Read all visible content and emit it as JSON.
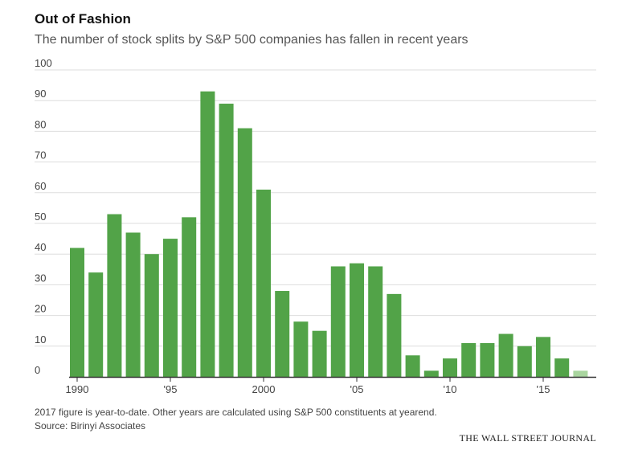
{
  "header": {
    "title": "Out of Fashion",
    "subtitle": "The number of stock splits by S&P 500 companies has fallen in recent years"
  },
  "footer": {
    "note": "2017 figure is year-to-date. Other years are calculated using S&P 500 constituents at yearend.",
    "source": "Source: Birinyi Associates",
    "brand": "THE WALL STREET JOURNAL"
  },
  "colors": {
    "bar": "#52a348",
    "bar_partial": "#a9d59f",
    "grid": "#dddddd",
    "axis": "#333333"
  },
  "chart_data": {
    "type": "bar",
    "title": "Out of Fashion",
    "subtitle": "The number of stock splits by S&P 500 companies has fallen in recent years",
    "xlabel": "",
    "ylabel": "",
    "ylim": [
      0,
      100
    ],
    "yticks": [
      "0",
      "10",
      "20",
      "30",
      "40",
      "50",
      "60",
      "70",
      "80",
      "90",
      "100"
    ],
    "xtick_labels": [
      {
        "year": 1990,
        "label": "1990"
      },
      {
        "year": 1995,
        "label": "'95"
      },
      {
        "year": 2000,
        "label": "2000"
      },
      {
        "year": 2005,
        "label": "'05"
      },
      {
        "year": 2010,
        "label": "'10"
      },
      {
        "year": 2015,
        "label": "'15"
      }
    ],
    "categories": [
      1990,
      1991,
      1992,
      1993,
      1994,
      1995,
      1996,
      1997,
      1998,
      1999,
      2000,
      2001,
      2002,
      2003,
      2004,
      2005,
      2006,
      2007,
      2008,
      2009,
      2010,
      2011,
      2012,
      2013,
      2014,
      2015,
      2016,
      2017
    ],
    "values": [
      42,
      34,
      53,
      47,
      40,
      45,
      52,
      93,
      89,
      81,
      61,
      28,
      18,
      15,
      36,
      37,
      36,
      27,
      7,
      2,
      6,
      11,
      11,
      14,
      10,
      13,
      6,
      2
    ],
    "partial_year": 2017,
    "grid": true
  }
}
